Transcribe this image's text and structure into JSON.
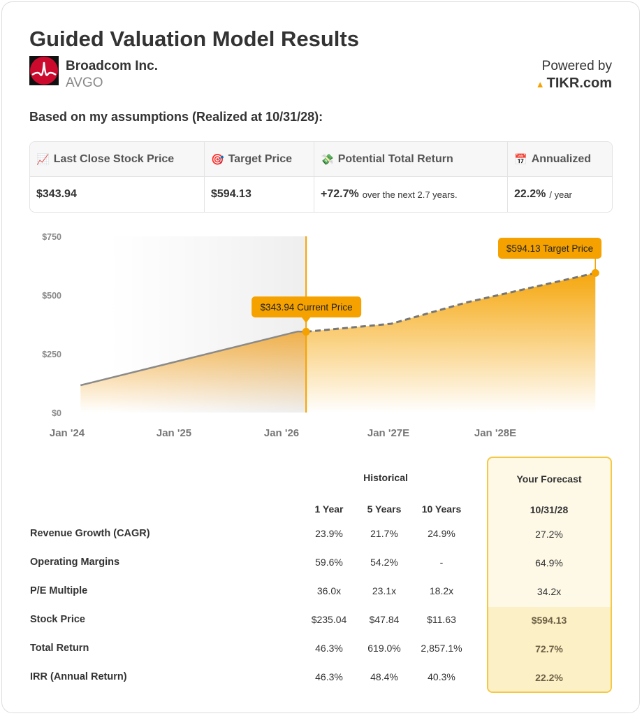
{
  "title": "Guided Valuation Model Results",
  "company": {
    "name": "Broadcom Inc.",
    "ticker": "AVGO",
    "logo_color": "#cc0a2e"
  },
  "powered": {
    "line1": "Powered by",
    "brand": "TIKR.com",
    "brand_icon": "tikr-logo-icon",
    "accent": "#f5a200"
  },
  "assumption_text": "Based on my assumptions (Realized at 10/31/28):",
  "stats": [
    {
      "icon": "📈",
      "label": "Last Close Stock Price",
      "value": "$343.94",
      "suffix": ""
    },
    {
      "icon": "🎯",
      "label": "Target Price",
      "value": "$594.13",
      "suffix": ""
    },
    {
      "icon": "💸",
      "label": "Potential Total Return",
      "value": "+72.7%",
      "suffix": "over the next 2.7 years."
    },
    {
      "icon": "📅",
      "label": "Annualized",
      "value": "22.2%",
      "suffix": "/ year"
    }
  ],
  "chart_data": {
    "type": "area",
    "y_ticks": [
      "$0",
      "$250",
      "$500",
      "$750"
    ],
    "y_tick_values": [
      0,
      250,
      500,
      750
    ],
    "ylim": [
      0,
      750
    ],
    "x_ticks": [
      "Jan '24",
      "Jan '25",
      "Jan '26",
      "Jan '27E",
      "Jan '28E"
    ],
    "x_tick_dates": [
      "2024-01-01",
      "2025-01-01",
      "2026-01-01",
      "2027-01-01",
      "2028-01-01"
    ],
    "historical": [
      {
        "x": "2024-02-15",
        "y": 116
      },
      {
        "x": "2026-02-10",
        "y": 345
      },
      {
        "x": "2026-03-10",
        "y": 343.94
      }
    ],
    "forecast": [
      {
        "x": "2026-03-10",
        "y": 343.94
      },
      {
        "x": "2026-12-20",
        "y": 378
      },
      {
        "x": "2027-09-01",
        "y": 470
      },
      {
        "x": "2028-10-31",
        "y": 594.13
      }
    ],
    "annotations": {
      "current": "$343.94 Current Price",
      "target": "$594.13 Target Price"
    },
    "colors": {
      "accent": "#f5a200",
      "line": "#888888"
    },
    "grid": false
  },
  "table": {
    "historical_header": "Historical",
    "forecast_header": "Your Forecast",
    "columns": [
      "1 Year",
      "5 Years",
      "10 Years"
    ],
    "forecast_date": "10/31/28",
    "rows": [
      {
        "label": "Revenue Growth (CAGR)",
        "values": [
          "23.9%",
          "21.7%",
          "24.9%"
        ],
        "forecast": "27.2%"
      },
      {
        "label": "Operating Margins",
        "values": [
          "59.6%",
          "54.2%",
          "-"
        ],
        "forecast": "64.9%"
      },
      {
        "label": "P/E Multiple",
        "values": [
          "36.0x",
          "23.1x",
          "18.2x"
        ],
        "forecast": "34.2x"
      },
      {
        "label": "Stock Price",
        "values": [
          "$235.04",
          "$47.84",
          "$11.63"
        ],
        "forecast": "$594.13"
      },
      {
        "label": "Total Return",
        "values": [
          "46.3%",
          "619.0%",
          "2,857.1%"
        ],
        "forecast": "72.7%"
      },
      {
        "label": "IRR (Annual Return)",
        "values": [
          "46.3%",
          "48.4%",
          "40.3%"
        ],
        "forecast": "22.2%"
      }
    ]
  }
}
